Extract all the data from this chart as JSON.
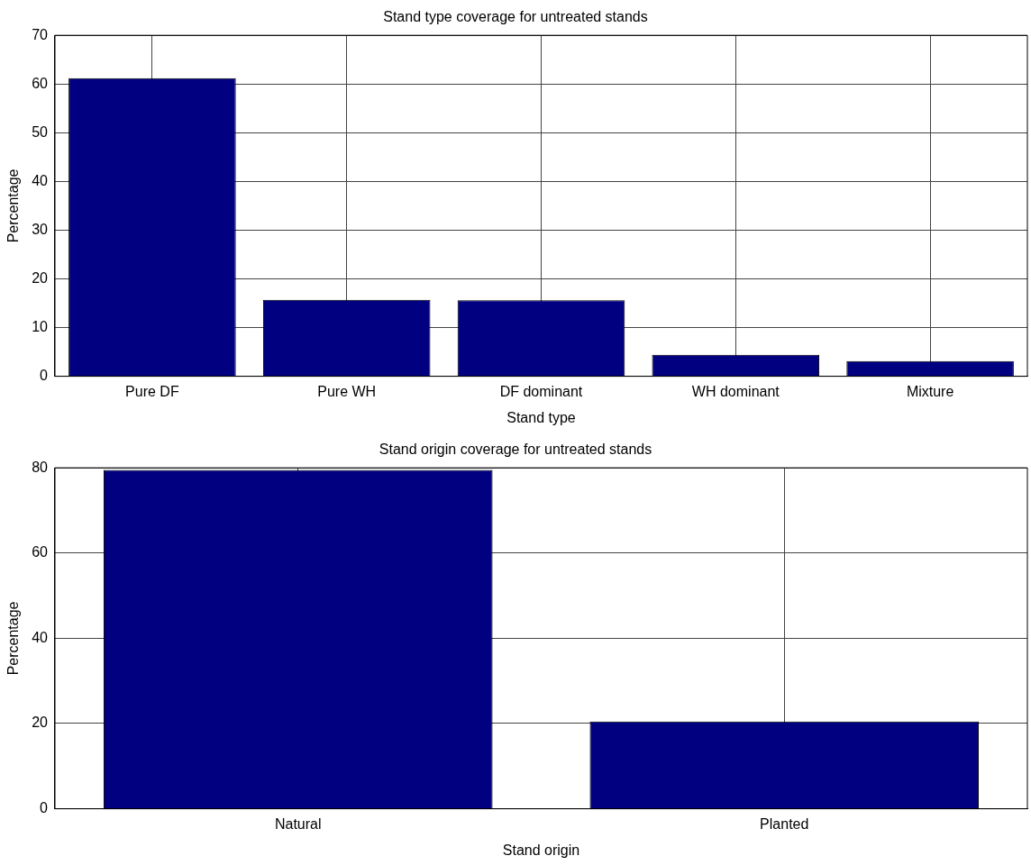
{
  "chart_data": [
    {
      "type": "bar",
      "title": "Stand type coverage for untreated stands",
      "xlabel": "Stand type",
      "ylabel": "Percentage",
      "categories": [
        "Pure DF",
        "Pure WH",
        "DF dominant",
        "WH dominant",
        "Mixture"
      ],
      "values": [
        61.2,
        15.7,
        15.6,
        4.4,
        3.1
      ],
      "color": "#000080",
      "ylim": [
        0,
        70
      ],
      "yticks": [
        0,
        10,
        20,
        30,
        40,
        50,
        60,
        70
      ],
      "grid": true
    },
    {
      "type": "bar",
      "title": "Stand origin coverage for untreated stands",
      "xlabel": "Stand origin",
      "ylabel": "Percentage",
      "categories": [
        "Natural",
        "Planted"
      ],
      "values": [
        79.5,
        20.5
      ],
      "color": "#000080",
      "ylim": [
        0,
        80
      ],
      "yticks": [
        0,
        20,
        40,
        60,
        80
      ],
      "grid": true
    }
  ]
}
